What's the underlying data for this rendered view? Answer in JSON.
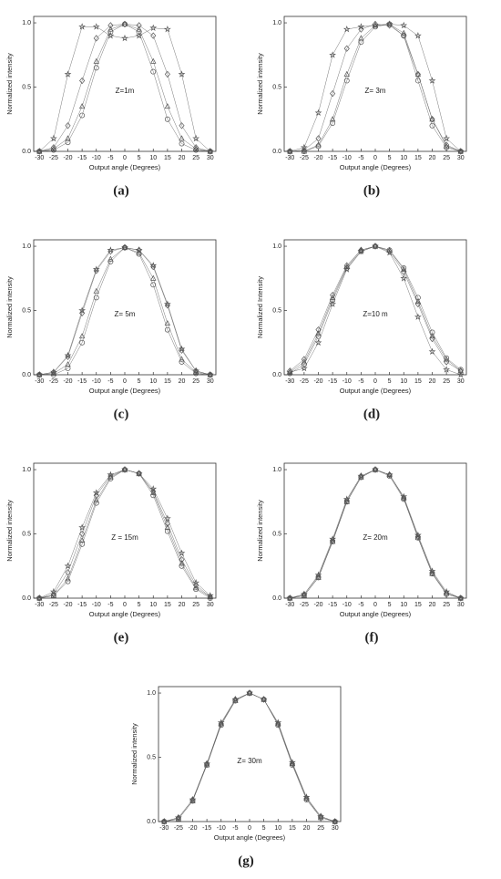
{
  "chart_data": [
    {
      "type": "line",
      "annotation": "Z=1m",
      "caption": "(a)",
      "x_label": "Output angle (Degrees)",
      "y_label": "Normalized intensity",
      "x": [
        -30,
        -25,
        -20,
        -15,
        -10,
        -5,
        0,
        5,
        10,
        15,
        20,
        25,
        30
      ],
      "xlim": [
        -32,
        32
      ],
      "xticks": [
        -30,
        -25,
        -20,
        -15,
        -10,
        -5,
        0,
        5,
        10,
        15,
        20,
        25,
        30
      ],
      "ylim": [
        0,
        1.05
      ],
      "yticks": [
        {
          "value": 0,
          "label": "0.0"
        },
        {
          "value": 0.5,
          "label": "0.5"
        },
        {
          "value": 1,
          "label": "1.0"
        }
      ],
      "series": [
        {
          "marker": "star",
          "color": "#555555",
          "values": [
            0,
            0.1,
            0.6,
            0.97,
            0.97,
            0.9,
            0.88,
            0.9,
            0.96,
            0.95,
            0.6,
            0.1,
            0
          ]
        },
        {
          "marker": "diamond",
          "color": "#555555",
          "values": [
            0,
            0.03,
            0.2,
            0.55,
            0.88,
            0.98,
            0.99,
            0.98,
            0.9,
            0.6,
            0.2,
            0.03,
            0
          ]
        },
        {
          "marker": "triangle",
          "color": "#555555",
          "values": [
            0,
            0.02,
            0.1,
            0.35,
            0.7,
            0.95,
            0.99,
            0.95,
            0.7,
            0.35,
            0.1,
            0.02,
            0
          ]
        },
        {
          "marker": "circle",
          "color": "#555555",
          "values": [
            0,
            0.01,
            0.07,
            0.28,
            0.65,
            0.93,
            0.99,
            0.93,
            0.62,
            0.25,
            0.06,
            0.01,
            0
          ]
        }
      ]
    },
    {
      "type": "line",
      "annotation": "Z= 3m",
      "caption": "(b)",
      "x_label": "Output angle (Degrees)",
      "y_label": "Normalized intensity",
      "x": [
        -30,
        -25,
        -20,
        -15,
        -10,
        -5,
        0,
        5,
        10,
        15,
        20,
        25,
        30
      ],
      "xlim": [
        -32,
        32
      ],
      "xticks": [
        -30,
        -25,
        -20,
        -15,
        -10,
        -5,
        0,
        5,
        10,
        15,
        20,
        25,
        30
      ],
      "ylim": [
        0,
        1.05
      ],
      "yticks": [
        {
          "value": 0,
          "label": "0.0"
        },
        {
          "value": 0.5,
          "label": "0.5"
        },
        {
          "value": 1,
          "label": "1.0"
        }
      ],
      "series": [
        {
          "marker": "star",
          "color": "#555555",
          "values": [
            0,
            0.03,
            0.3,
            0.75,
            0.95,
            0.97,
            0.98,
            0.99,
            0.98,
            0.9,
            0.55,
            0.1,
            0
          ]
        },
        {
          "marker": "diamond",
          "color": "#555555",
          "values": [
            0,
            0.01,
            0.1,
            0.45,
            0.8,
            0.95,
            0.99,
            0.98,
            0.9,
            0.6,
            0.25,
            0.05,
            0
          ]
        },
        {
          "marker": "triangle",
          "color": "#555555",
          "values": [
            0,
            0,
            0.05,
            0.25,
            0.6,
            0.88,
            0.98,
            0.99,
            0.92,
            0.6,
            0.25,
            0.04,
            0
          ]
        },
        {
          "marker": "circle",
          "color": "#555555",
          "values": [
            0,
            0,
            0.04,
            0.22,
            0.55,
            0.85,
            0.97,
            0.99,
            0.9,
            0.55,
            0.2,
            0.03,
            0
          ]
        }
      ]
    },
    {
      "type": "line",
      "annotation": "Z= 5m",
      "caption": "(c)",
      "x_label": "Output angle (Degrees)",
      "y_label": "Normalized intensity",
      "x": [
        -30,
        -25,
        -20,
        -15,
        -10,
        -5,
        0,
        5,
        10,
        15,
        20,
        25,
        30
      ],
      "xlim": [
        -32,
        32
      ],
      "xticks": [
        -30,
        -25,
        -20,
        -15,
        -10,
        -5,
        0,
        5,
        10,
        15,
        20,
        25,
        30
      ],
      "ylim": [
        0,
        1.05
      ],
      "yticks": [
        {
          "value": 0,
          "label": "0.0"
        },
        {
          "value": 0.5,
          "label": "0.5"
        },
        {
          "value": 1,
          "label": "1.0"
        }
      ],
      "series": [
        {
          "marker": "star",
          "color": "#555555",
          "values": [
            0,
            0.02,
            0.15,
            0.5,
            0.82,
            0.97,
            0.99,
            0.97,
            0.85,
            0.55,
            0.2,
            0.03,
            0
          ]
        },
        {
          "marker": "diamond",
          "color": "#555555",
          "values": [
            0,
            0.02,
            0.14,
            0.48,
            0.81,
            0.96,
            0.99,
            0.97,
            0.84,
            0.54,
            0.19,
            0.03,
            0
          ]
        },
        {
          "marker": "triangle",
          "color": "#555555",
          "values": [
            0,
            0.01,
            0.08,
            0.3,
            0.65,
            0.9,
            0.99,
            0.95,
            0.75,
            0.4,
            0.12,
            0.02,
            0
          ]
        },
        {
          "marker": "circle",
          "color": "#555555",
          "values": [
            0,
            0,
            0.05,
            0.25,
            0.6,
            0.88,
            0.99,
            0.94,
            0.7,
            0.35,
            0.1,
            0.01,
            0
          ]
        }
      ]
    },
    {
      "type": "line",
      "annotation": "Z=10 m",
      "caption": "(d)",
      "x_label": "Output angle (Degrees)",
      "y_label": "Normalized Intensity",
      "x": [
        -30,
        -25,
        -20,
        -15,
        -10,
        -5,
        0,
        5,
        10,
        15,
        20,
        25,
        30
      ],
      "xlim": [
        -32,
        32
      ],
      "xticks": [
        -30,
        -25,
        -20,
        -15,
        -10,
        -5,
        0,
        5,
        10,
        15,
        20,
        25,
        30
      ],
      "ylim": [
        0,
        1.05
      ],
      "yticks": [
        {
          "value": 0,
          "label": "0.0"
        },
        {
          "value": 0.5,
          "label": "0.5"
        },
        {
          "value": 1,
          "label": "1.0"
        }
      ],
      "series": [
        {
          "marker": "star",
          "color": "#555555",
          "values": [
            0.02,
            0.05,
            0.25,
            0.55,
            0.82,
            0.96,
            1,
            0.95,
            0.75,
            0.45,
            0.18,
            0.04,
            0
          ]
        },
        {
          "marker": "diamond",
          "color": "#555555",
          "values": [
            0.03,
            0.12,
            0.35,
            0.62,
            0.85,
            0.97,
            1,
            0.96,
            0.8,
            0.55,
            0.28,
            0.1,
            0.03
          ]
        },
        {
          "marker": "triangle",
          "color": "#555555",
          "values": [
            0.02,
            0.1,
            0.32,
            0.6,
            0.84,
            0.97,
            1,
            0.97,
            0.82,
            0.57,
            0.3,
            0.12,
            0.03
          ]
        },
        {
          "marker": "circle",
          "color": "#555555",
          "values": [
            0.01,
            0.08,
            0.3,
            0.58,
            0.83,
            0.96,
            1,
            0.97,
            0.83,
            0.6,
            0.33,
            0.13,
            0.04
          ]
        }
      ]
    },
    {
      "type": "line",
      "annotation": "Z = 15m",
      "caption": "(e)",
      "x_label": "Output angle (Degrees)",
      "y_label": "Normalized intensity",
      "x": [
        -30,
        -25,
        -20,
        -15,
        -10,
        -5,
        0,
        5,
        10,
        15,
        20,
        25,
        30
      ],
      "xlim": [
        -32,
        32
      ],
      "xticks": [
        -30,
        -25,
        -20,
        -15,
        -10,
        -5,
        0,
        5,
        10,
        15,
        20,
        25,
        30
      ],
      "ylim": [
        0,
        1.05
      ],
      "yticks": [
        {
          "value": 0,
          "label": "0.0"
        },
        {
          "value": 0.5,
          "label": "0.5"
        },
        {
          "value": 1,
          "label": "1.0"
        }
      ],
      "series": [
        {
          "marker": "star",
          "color": "#555555",
          "values": [
            0,
            0.05,
            0.25,
            0.55,
            0.82,
            0.96,
            1,
            0.97,
            0.85,
            0.62,
            0.35,
            0.12,
            0.02
          ]
        },
        {
          "marker": "diamond",
          "color": "#555555",
          "values": [
            0,
            0.03,
            0.2,
            0.5,
            0.8,
            0.95,
            1,
            0.97,
            0.83,
            0.58,
            0.3,
            0.1,
            0.01
          ]
        },
        {
          "marker": "triangle",
          "color": "#555555",
          "values": [
            0,
            0.02,
            0.15,
            0.45,
            0.76,
            0.94,
            1,
            0.97,
            0.82,
            0.55,
            0.27,
            0.08,
            0.01
          ]
        },
        {
          "marker": "circle",
          "color": "#555555",
          "values": [
            0,
            0.02,
            0.13,
            0.42,
            0.74,
            0.93,
            1,
            0.97,
            0.8,
            0.52,
            0.25,
            0.07,
            0
          ]
        }
      ]
    },
    {
      "type": "line",
      "annotation": "Z= 20m",
      "caption": "(f)",
      "x_label": "Output angle (Degrees)",
      "y_label": "Normalized intensity",
      "x": [
        -30,
        -25,
        -20,
        -15,
        -10,
        -5,
        0,
        5,
        10,
        15,
        20,
        25,
        30
      ],
      "xlim": [
        -32,
        32
      ],
      "xticks": [
        -30,
        -25,
        -20,
        -15,
        -10,
        -5,
        0,
        5,
        10,
        15,
        20,
        25,
        30
      ],
      "ylim": [
        0,
        1.05
      ],
      "yticks": [
        {
          "value": 0,
          "label": "0.0"
        },
        {
          "value": 0.5,
          "label": "0.5"
        },
        {
          "value": 1,
          "label": "1.0"
        }
      ],
      "series": [
        {
          "marker": "star",
          "color": "#555555",
          "values": [
            0,
            0.03,
            0.18,
            0.46,
            0.77,
            0.95,
            1,
            0.96,
            0.79,
            0.49,
            0.21,
            0.05,
            0
          ]
        },
        {
          "marker": "diamond",
          "color": "#555555",
          "values": [
            0,
            0.03,
            0.17,
            0.45,
            0.76,
            0.95,
            1,
            0.96,
            0.78,
            0.48,
            0.2,
            0.04,
            0
          ]
        },
        {
          "marker": "triangle",
          "color": "#555555",
          "values": [
            0,
            0.02,
            0.16,
            0.44,
            0.75,
            0.94,
            1,
            0.96,
            0.78,
            0.47,
            0.19,
            0.04,
            0
          ]
        },
        {
          "marker": "circle",
          "color": "#555555",
          "values": [
            0,
            0.02,
            0.16,
            0.44,
            0.75,
            0.94,
            1,
            0.95,
            0.77,
            0.47,
            0.19,
            0.03,
            0
          ]
        }
      ]
    },
    {
      "type": "line",
      "annotation": "Z= 30m",
      "caption": "(g)",
      "x_label": "Output angle (Degrees)",
      "y_label": "Normalized intensity",
      "x": [
        -30,
        -25,
        -20,
        -15,
        -10,
        -5,
        0,
        5,
        10,
        15,
        20,
        25,
        30
      ],
      "xlim": [
        -32,
        32
      ],
      "xticks": [
        -30,
        -25,
        -20,
        -15,
        -10,
        -5,
        0,
        5,
        10,
        15,
        20,
        25,
        30
      ],
      "ylim": [
        0,
        1.05
      ],
      "yticks": [
        {
          "value": 0,
          "label": "0.0"
        },
        {
          "value": 0.5,
          "label": "0.5"
        },
        {
          "value": 1,
          "label": "1.0"
        }
      ],
      "series": [
        {
          "marker": "star",
          "color": "#555555",
          "values": [
            0,
            0.03,
            0.17,
            0.45,
            0.77,
            0.95,
            1,
            0.95,
            0.77,
            0.46,
            0.19,
            0.04,
            0
          ]
        },
        {
          "marker": "diamond",
          "color": "#555555",
          "values": [
            0,
            0.03,
            0.17,
            0.45,
            0.76,
            0.95,
            1,
            0.95,
            0.76,
            0.45,
            0.18,
            0.04,
            0
          ]
        },
        {
          "marker": "triangle",
          "color": "#555555",
          "values": [
            0,
            0.02,
            0.16,
            0.44,
            0.76,
            0.94,
            1,
            0.95,
            0.76,
            0.45,
            0.18,
            0.03,
            0
          ]
        },
        {
          "marker": "circle",
          "color": "#555555",
          "values": [
            0,
            0.02,
            0.16,
            0.44,
            0.75,
            0.94,
            1,
            0.95,
            0.75,
            0.44,
            0.17,
            0.03,
            0
          ]
        }
      ]
    }
  ]
}
